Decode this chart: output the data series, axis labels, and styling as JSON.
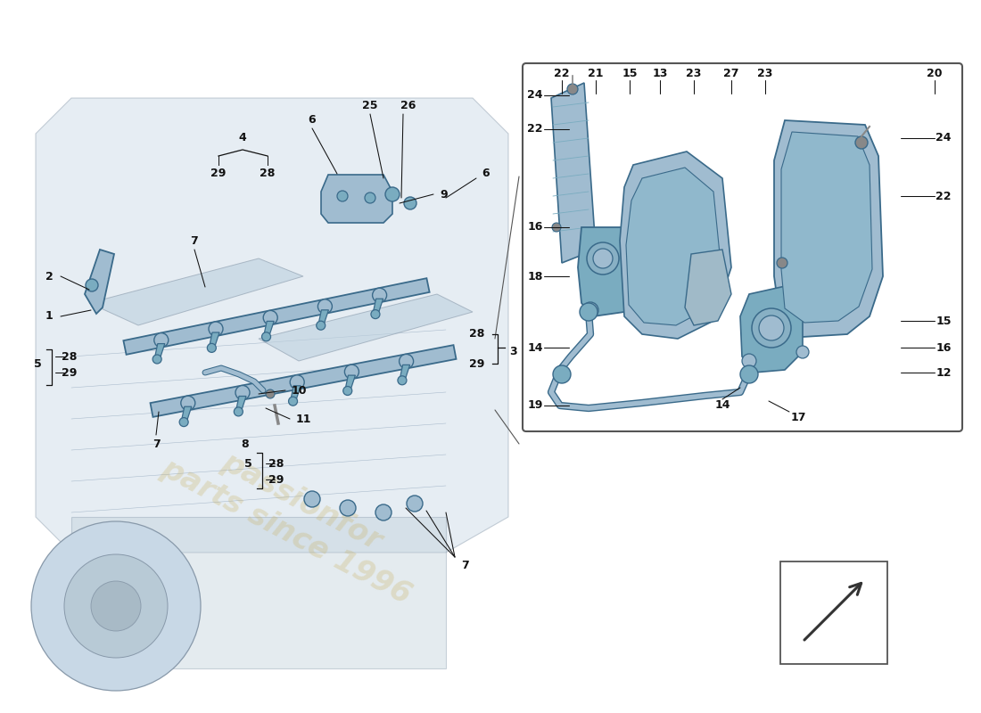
{
  "bg": "#ffffff",
  "ef": "#c8d8e6",
  "ee": "#8899aa",
  "pf": "#a0bcd0",
  "pe": "#3a6a8a",
  "pf2": "#7aacc0",
  "lc": "#111111",
  "ls": 9.0,
  "wm_color": "#c8b060",
  "wm_alpha": 0.28
}
